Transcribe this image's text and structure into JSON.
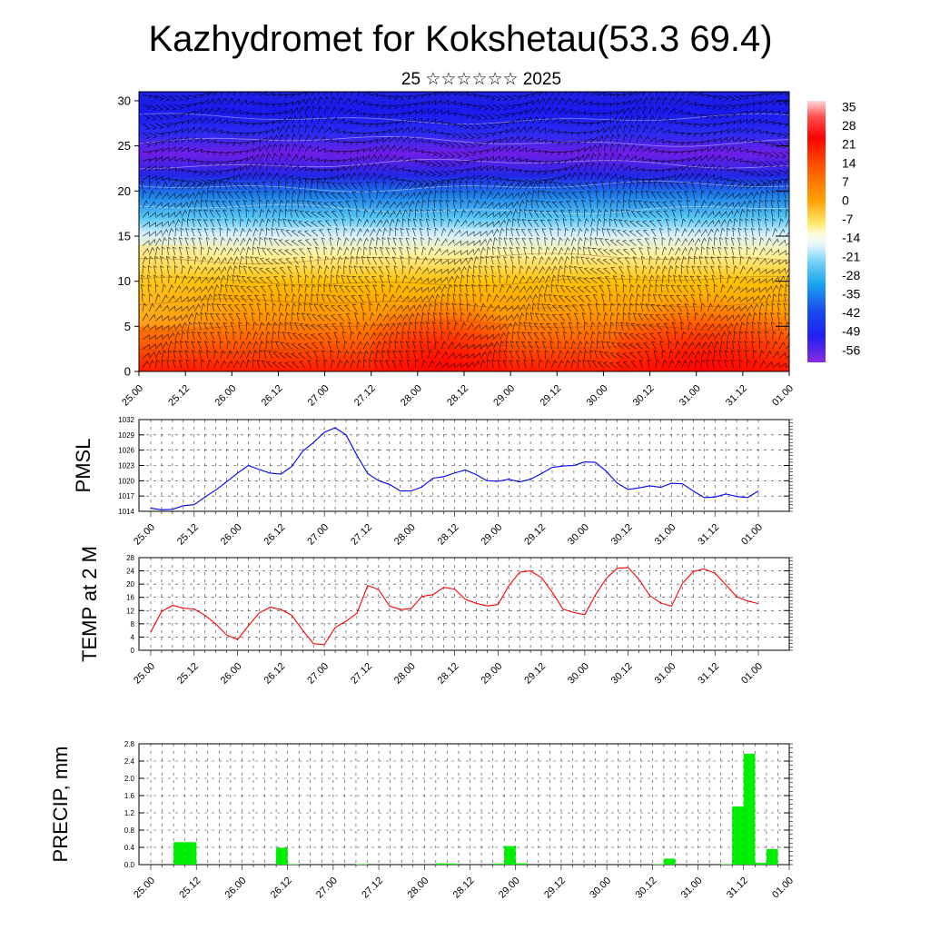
{
  "title": "Kazhydromet for Kokshetau(53.3 69.4)",
  "subtitle": "25 ☆☆☆☆☆☆ 2025",
  "colors": {
    "pmsl_line": "#0000ff",
    "temp_line": "#ff0000",
    "precip_bar": "#00ee00",
    "grid": "#000000"
  },
  "chart_data": [
    {
      "type": "heatmap",
      "name": "cross-section",
      "yticks": [
        "0",
        "5",
        "10",
        "15",
        "20",
        "25",
        "30"
      ],
      "ylim": [
        0,
        31
      ],
      "xticks": [
        "25.00",
        "25.12",
        "26.00",
        "26.12",
        "27.00",
        "27.12",
        "28.00",
        "28.12",
        "29.00",
        "29.12",
        "30.00",
        "30.12",
        "31.00",
        "31.12",
        "01.00"
      ],
      "xlim": [
        0,
        168
      ],
      "colorbar": {
        "labels": [
          "35",
          "28",
          "21",
          "14",
          "7",
          "0",
          "-7",
          "-14",
          "-21",
          "-28",
          "-35",
          "-42",
          "-49",
          "-56"
        ]
      }
    },
    {
      "type": "line",
      "ylabel": "PMSL",
      "yticks": [
        "1014",
        "1017",
        "1020",
        "1023",
        "1026",
        "1029",
        "1032"
      ],
      "ylim": [
        1014,
        1032
      ],
      "xticks": [
        "25.00",
        "25.12",
        "26.00",
        "26.12",
        "27.00",
        "27.12",
        "28.00",
        "28.12",
        "29.00",
        "29.12",
        "30.00",
        "30.12",
        "31.00",
        "31.12",
        "01.00"
      ],
      "x": [
        0,
        3,
        6,
        9,
        12,
        15,
        18,
        21,
        24,
        27,
        30,
        33,
        36,
        39,
        42,
        45,
        48,
        51,
        54,
        57,
        60,
        63,
        66,
        69,
        72,
        75,
        78,
        81,
        84,
        87,
        90,
        93,
        96,
        99,
        102,
        105,
        108,
        111,
        114,
        117,
        120,
        123,
        126,
        129,
        132,
        135,
        138,
        141,
        144,
        147,
        150,
        153,
        156,
        159,
        162,
        165,
        168
      ],
      "values": [
        1014.6,
        1014.3,
        1014.4,
        1015.1,
        1015.3,
        1016.8,
        1018.2,
        1019.8,
        1021.5,
        1023.0,
        1022.2,
        1021.5,
        1021.3,
        1022.8,
        1025.8,
        1027.5,
        1029.5,
        1030.4,
        1029.0,
        1025.0,
        1021.4,
        1020.0,
        1019.3,
        1018.0,
        1018.0,
        1018.8,
        1020.5,
        1020.8,
        1021.5,
        1022.1,
        1021.2,
        1020.0,
        1019.9,
        1020.3,
        1019.8,
        1020.3,
        1021.4,
        1022.6,
        1022.9,
        1023.0,
        1023.7,
        1023.6,
        1021.8,
        1019.5,
        1018.3,
        1018.6,
        1019.0,
        1018.7,
        1019.5,
        1019.4,
        1018.0,
        1016.7,
        1016.8,
        1017.4,
        1016.9,
        1016.7,
        1018.0
      ]
    },
    {
      "type": "line",
      "ylabel": "TEMP at 2 M",
      "yticks": [
        "0",
        "4",
        "8",
        "12",
        "16",
        "20",
        "24",
        "28"
      ],
      "ylim": [
        0,
        28
      ],
      "xticks": [
        "25.00",
        "25.12",
        "26.00",
        "26.12",
        "27.00",
        "27.12",
        "28.00",
        "28.12",
        "29.00",
        "29.12",
        "30.00",
        "30.12",
        "31.00",
        "31.12",
        "01.00"
      ],
      "x": [
        0,
        3,
        6,
        9,
        12,
        15,
        18,
        21,
        24,
        27,
        30,
        33,
        36,
        39,
        42,
        45,
        48,
        51,
        54,
        57,
        60,
        63,
        66,
        69,
        72,
        75,
        78,
        81,
        84,
        87,
        90,
        93,
        96,
        99,
        102,
        105,
        108,
        111,
        114,
        117,
        120,
        123,
        126,
        129,
        132,
        135,
        138,
        141,
        144,
        147,
        150,
        153,
        156,
        159,
        162,
        165,
        168
      ],
      "values": [
        5.5,
        11.7,
        13.6,
        12.7,
        12.5,
        10.6,
        7.9,
        4.6,
        3.2,
        7.4,
        11.3,
        13.0,
        12.3,
        10.6,
        6.0,
        2.0,
        1.7,
        6.9,
        8.8,
        11.2,
        19.6,
        18.3,
        13.4,
        12.3,
        12.6,
        16.3,
        16.8,
        19.0,
        18.5,
        15.4,
        14.2,
        13.4,
        13.8,
        19.5,
        23.6,
        24.0,
        22.0,
        17.6,
        12.4,
        11.4,
        10.8,
        16.8,
        21.8,
        24.8,
        25.0,
        21.4,
        16.5,
        14.3,
        13.3,
        20.2,
        23.8,
        24.6,
        23.3,
        19.8,
        16.2,
        14.9,
        14.1
      ]
    },
    {
      "type": "bar",
      "ylabel": "PRECIP, mm",
      "yticks": [
        "0.0",
        "0.4",
        "0.8",
        "1.2",
        "1.6",
        "2.0",
        "2.4",
        "2.8"
      ],
      "ylim": [
        0,
        2.8
      ],
      "xticks": [
        "25.00",
        "25.12",
        "26.00",
        "26.12",
        "27.00",
        "27.12",
        "28.00",
        "28.12",
        "29.00",
        "29.12",
        "30.00",
        "30.12",
        "31.00",
        "31.12",
        "01.00"
      ],
      "x": [
        9,
        12,
        36,
        39,
        57,
        78,
        81,
        93,
        96,
        99,
        135,
        138,
        153,
        156,
        159,
        162,
        165
      ],
      "values": [
        0.52,
        0.52,
        0.39,
        0.01,
        0.01,
        0.03,
        0.02,
        0.02,
        0.43,
        0.03,
        0.01,
        0.14,
        0.01,
        1.35,
        2.57,
        0.04,
        0.36
      ]
    }
  ]
}
